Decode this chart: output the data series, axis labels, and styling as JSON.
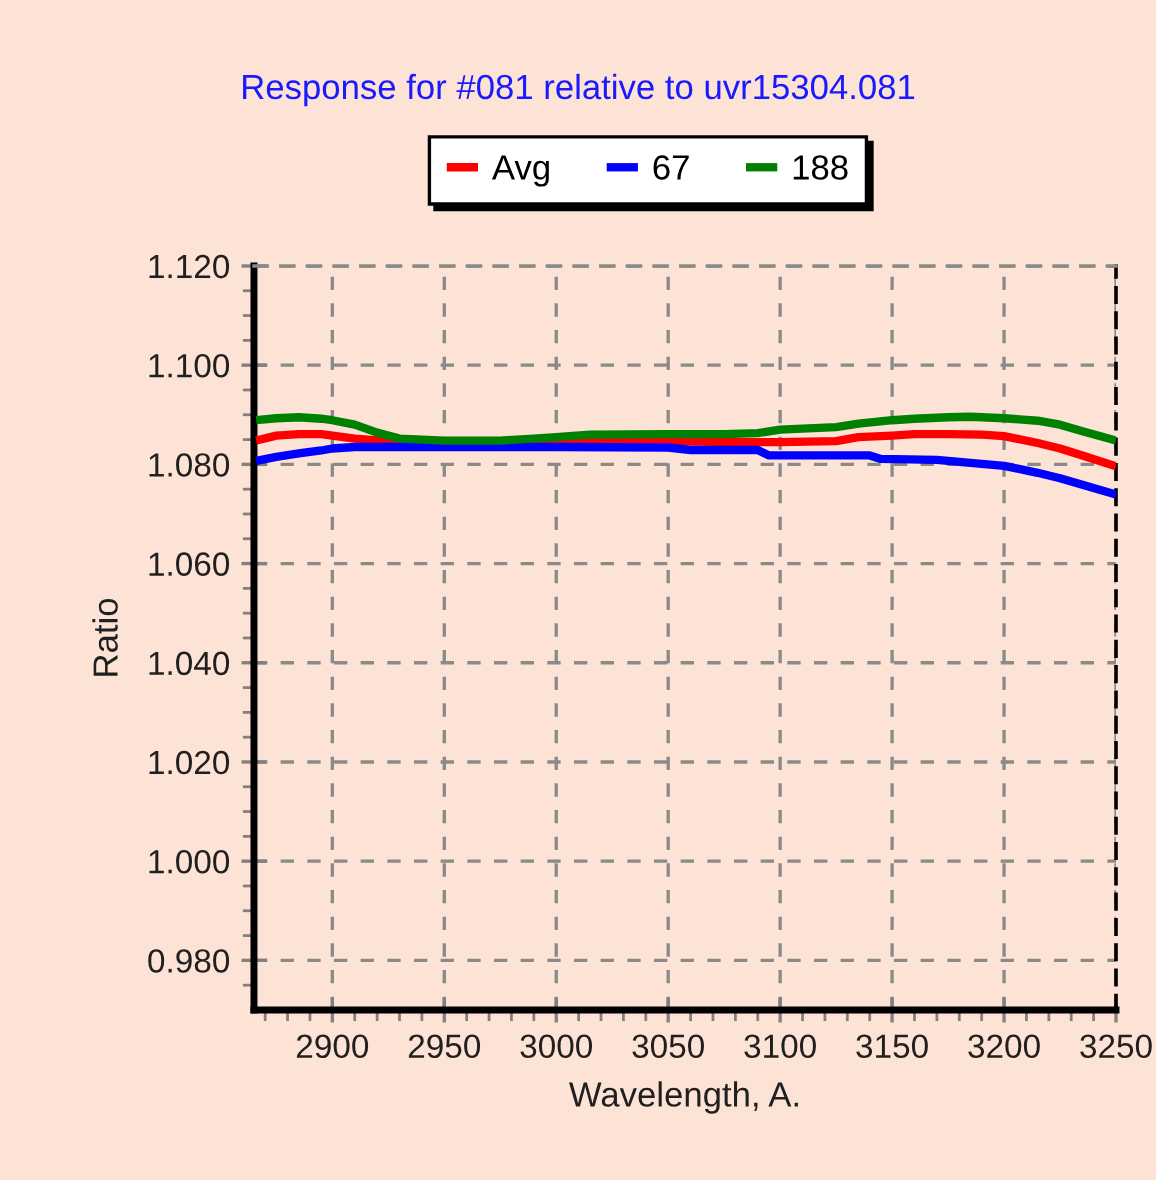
{
  "chart_data": {
    "type": "line",
    "title": "Response for #081 relative to uvr15304.081",
    "xlabel": "Wavelength, A.",
    "ylabel": "Ratio",
    "series": [
      {
        "name": "Avg",
        "color": "#ff0000",
        "x": [
          2866,
          2875,
          2885,
          2895,
          2900,
          2910,
          2930,
          2950,
          2975,
          3000,
          3015,
          3050,
          3075,
          3100,
          3125,
          3135,
          3150,
          3160,
          3175,
          3190,
          3200,
          3215,
          3225,
          3235,
          3250
        ],
        "values": [
          1.0848,
          1.0858,
          1.0861,
          1.0861,
          1.0858,
          1.0852,
          1.0845,
          1.0843,
          1.0843,
          1.0844,
          1.0846,
          1.0847,
          1.0845,
          1.0845,
          1.0847,
          1.0855,
          1.0858,
          1.0861,
          1.0861,
          1.086,
          1.0857,
          1.0843,
          1.0832,
          1.0818,
          1.0796
        ]
      },
      {
        "name": "67",
        "color": "#0000ff",
        "x": [
          2866,
          2875,
          2885,
          2895,
          2900,
          2910,
          2950,
          3000,
          3050,
          3060,
          3090,
          3095,
          3140,
          3145,
          3170,
          3185,
          3200,
          3215,
          3225,
          3235,
          3250
        ],
        "values": [
          1.0807,
          1.0815,
          1.0822,
          1.0828,
          1.0832,
          1.0835,
          1.0835,
          1.0835,
          1.0834,
          1.0829,
          1.0829,
          1.0818,
          1.0818,
          1.0811,
          1.0809,
          1.0803,
          1.0797,
          1.0783,
          1.0772,
          1.0759,
          1.0739
        ]
      },
      {
        "name": "188",
        "color": "#008000",
        "x": [
          2866,
          2875,
          2885,
          2895,
          2900,
          2910,
          2920,
          2930,
          2950,
          2975,
          2990,
          3000,
          3015,
          3050,
          3075,
          3090,
          3100,
          3125,
          3135,
          3150,
          3160,
          3175,
          3185,
          3200,
          3215,
          3225,
          3235,
          3250
        ],
        "values": [
          1.0889,
          1.0893,
          1.0895,
          1.0892,
          1.0889,
          1.088,
          1.0864,
          1.0852,
          1.0848,
          1.0848,
          1.0852,
          1.0855,
          1.086,
          1.0861,
          1.0861,
          1.0863,
          1.087,
          1.0875,
          1.0882,
          1.0889,
          1.0892,
          1.0895,
          1.0896,
          1.0893,
          1.0888,
          1.088,
          1.0867,
          1.0848
        ]
      }
    ],
    "xlim": [
      2865,
      3250
    ],
    "ylim": [
      0.97,
      1.12
    ],
    "xticks": [
      {
        "value": 2870,
        "label": null
      },
      {
        "value": 2880,
        "label": null
      },
      {
        "value": 2890,
        "label": null
      },
      2900,
      {
        "value": 2910,
        "label": null
      },
      {
        "value": 2920,
        "label": null
      },
      {
        "value": 2930,
        "label": null
      },
      {
        "value": 2940,
        "label": null
      },
      2950,
      {
        "value": 2960,
        "label": null
      },
      {
        "value": 2970,
        "label": null
      },
      {
        "value": 2980,
        "label": null
      },
      {
        "value": 2990,
        "label": null
      },
      3000,
      {
        "value": 3010,
        "label": null
      },
      {
        "value": 3020,
        "label": null
      },
      {
        "value": 3030,
        "label": null
      },
      {
        "value": 3040,
        "label": null
      },
      3050,
      {
        "value": 3060,
        "label": null
      },
      {
        "value": 3070,
        "label": null
      },
      {
        "value": 3080,
        "label": null
      },
      {
        "value": 3090,
        "label": null
      },
      3100,
      {
        "value": 3110,
        "label": null
      },
      {
        "value": 3120,
        "label": null
      },
      {
        "value": 3130,
        "label": null
      },
      {
        "value": 3140,
        "label": null
      },
      3150,
      {
        "value": 3160,
        "label": null
      },
      {
        "value": 3170,
        "label": null
      },
      {
        "value": 3180,
        "label": null
      },
      {
        "value": 3190,
        "label": null
      },
      3200,
      {
        "value": 3210,
        "label": null
      },
      {
        "value": 3220,
        "label": null
      },
      {
        "value": 3230,
        "label": null
      },
      {
        "value": 3240,
        "label": null
      },
      3250
    ],
    "yticks": [
      {
        "value": 0.975,
        "label": null
      },
      {
        "value": 0.98,
        "label": "0.980"
      },
      {
        "value": 0.985,
        "label": null
      },
      {
        "value": 0.99,
        "label": null
      },
      {
        "value": 0.995,
        "label": null
      },
      {
        "value": 1.0,
        "label": "1.000"
      },
      {
        "value": 1.005,
        "label": null
      },
      {
        "value": 1.01,
        "label": null
      },
      {
        "value": 1.015,
        "label": null
      },
      {
        "value": 1.02,
        "label": "1.020"
      },
      {
        "value": 1.025,
        "label": null
      },
      {
        "value": 1.03,
        "label": null
      },
      {
        "value": 1.035,
        "label": null
      },
      {
        "value": 1.04,
        "label": "1.040"
      },
      {
        "value": 1.045,
        "label": null
      },
      {
        "value": 1.05,
        "label": null
      },
      {
        "value": 1.055,
        "label": null
      },
      {
        "value": 1.06,
        "label": "1.060"
      },
      {
        "value": 1.065,
        "label": null
      },
      {
        "value": 1.07,
        "label": null
      },
      {
        "value": 1.075,
        "label": null
      },
      {
        "value": 1.08,
        "label": "1.080"
      },
      {
        "value": 1.085,
        "label": null
      },
      {
        "value": 1.09,
        "label": null
      },
      {
        "value": 1.095,
        "label": null
      },
      {
        "value": 1.1,
        "label": "1.100"
      },
      {
        "value": 1.105,
        "label": null
      },
      {
        "value": 1.11,
        "label": null
      },
      {
        "value": 1.115,
        "label": null
      },
      {
        "value": 1.12,
        "label": "1.120"
      }
    ],
    "grid": true,
    "legend": "top"
  }
}
